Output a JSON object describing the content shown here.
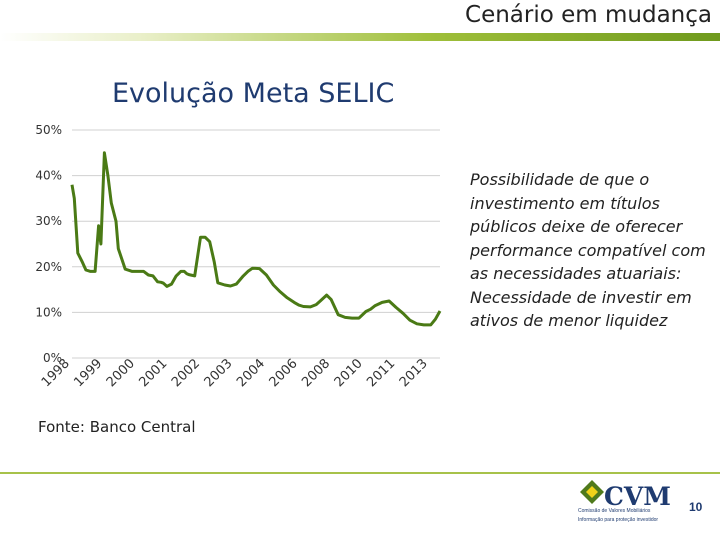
{
  "header": {
    "title": "Cenário em mudança"
  },
  "chart_data": {
    "type": "line",
    "title": "Evolução Meta SELIC",
    "xlabel": "",
    "ylabel": "",
    "ylim": [
      0,
      50
    ],
    "y_ticks": [
      "0%",
      "10%",
      "20%",
      "30%",
      "40%",
      "50%"
    ],
    "y_tick_values": [
      0,
      10,
      20,
      30,
      40,
      50
    ],
    "x_tick_labels": [
      "1998",
      "1999",
      "2000",
      "2001",
      "2002",
      "2003",
      "2004",
      "2006",
      "2008",
      "2010",
      "2011",
      "2013"
    ],
    "grid": "horizontal",
    "series": [
      {
        "color": "#4a7a15",
        "x": [
          1998.0,
          1998.1,
          1998.25,
          1998.45,
          1998.6,
          1998.8,
          1999.0,
          1999.15,
          1999.25,
          1999.4,
          1999.55,
          1999.7,
          1999.9,
          2000.0,
          2000.3,
          2000.6,
          2000.9,
          2001.1,
          2001.3,
          2001.5,
          2001.7,
          2001.85,
          2001.95,
          2002.1,
          2002.3,
          2002.5,
          2002.7,
          2002.85,
          2002.95,
          2003.05,
          2003.3,
          2003.55,
          2003.75,
          2003.95,
          2004.15,
          2004.3,
          2004.6,
          2004.85,
          2005.1,
          2005.4,
          2005.6,
          2005.8,
          2006.1,
          2006.4,
          2006.7,
          2007.0,
          2007.3,
          2007.6,
          2007.8,
          2008.0,
          2008.3,
          2008.55,
          2008.75,
          2009.0,
          2009.2,
          2009.5,
          2009.8,
          2010.1,
          2010.4,
          2010.7,
          2010.9,
          2011.1,
          2011.4,
          2011.7,
          2012.0,
          2012.3,
          2012.6,
          2012.9,
          2013.2,
          2013.5,
          2013.7,
          2013.9
        ],
        "values": [
          38,
          35,
          23,
          21,
          19.3,
          19,
          19,
          29,
          25,
          45,
          40,
          34,
          30,
          24,
          19.5,
          19,
          19,
          19,
          18.2,
          18,
          16.7,
          16.6,
          16.4,
          15.7,
          16.2,
          18,
          19,
          19,
          18.5,
          18.3,
          18,
          26.5,
          26.5,
          25.5,
          21,
          16.5,
          16,
          15.8,
          16.2,
          18,
          19,
          19.7,
          19.6,
          18.2,
          16,
          14.5,
          13.2,
          12.2,
          11.6,
          11.3,
          11.2,
          11.7,
          12.6,
          13.8,
          12.8,
          9.5,
          8.9,
          8.75,
          8.75,
          10.2,
          10.7,
          11.5,
          12.2,
          12.5,
          11.1,
          9.8,
          8.3,
          7.5,
          7.25,
          7.25,
          8.5,
          10.3
        ]
      }
    ]
  },
  "note_lines": [
    "Possibilidade de que o",
    "investimento em títulos",
    "públicos deixe de oferecer",
    "performance compatível com",
    "as necessidades atuariais:",
    "Necessidade de investir em",
    "ativos de menor liquidez"
  ],
  "source": "Fonte: Banco Central",
  "logo": {
    "text": "CVM",
    "sub1": "Comissão de Valores Mobiliários",
    "sub2": "Informação para proteção investidor"
  },
  "page_number": "10"
}
